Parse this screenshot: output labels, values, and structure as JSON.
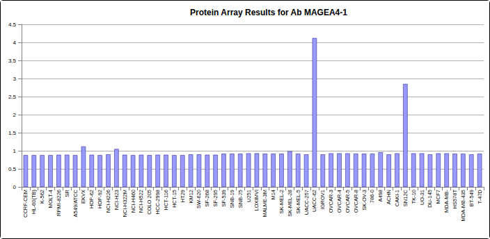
{
  "chart_data": {
    "type": "bar",
    "title": "Protein Array Results for Ab MAGEA4-1",
    "categories": [
      "CCRF-CEM",
      "HL-60(TB)",
      "K-562",
      "MOLT-4",
      "RPMI-8226",
      "SR",
      "A549/ATCC",
      "EKVX",
      "HOP-62",
      "HOP-92",
      "NCI-H226",
      "NCI-H23",
      "NCI-H322M",
      "NCI-H460",
      "NCI-H522",
      "COLO 205",
      "HCC-2998",
      "HCT-116",
      "HCT-15",
      "HT29",
      "KM12",
      "SW-620",
      "SF-268",
      "SF-295",
      "SF-539",
      "SNB-19",
      "SNB-75",
      "U251",
      "LOXIMVI",
      "MALME-3M",
      "M14",
      "SK-MEL-2",
      "SK-MEL-28",
      "SK-MEL-5",
      "UACC-257",
      "UACC-62",
      "IGROV1",
      "OVCAR-3",
      "OVCAR-4",
      "OVCAR-5",
      "OVCAR-8",
      "SK-OV-3",
      "786-0",
      "A498",
      "ACHN",
      "CAKI-1",
      "SN12C",
      "TK-10",
      "UO-31",
      "DU-145",
      "MCF7",
      "MDA-MB-",
      "HS578T",
      "MDA-MB-435",
      "BT-549",
      "T-47D"
    ],
    "values": [
      0.88,
      0.88,
      0.88,
      0.88,
      0.89,
      0.89,
      0.88,
      1.12,
      0.89,
      0.88,
      0.9,
      1.05,
      0.89,
      0.88,
      0.89,
      0.88,
      0.89,
      0.89,
      0.88,
      0.88,
      0.9,
      0.9,
      0.89,
      0.89,
      0.92,
      0.92,
      0.92,
      0.93,
      0.93,
      0.92,
      0.92,
      0.92,
      0.99,
      0.92,
      0.9,
      4.12,
      0.9,
      0.93,
      0.93,
      0.93,
      0.92,
      0.92,
      0.92,
      0.96,
      0.9,
      0.93,
      2.85,
      0.93,
      0.93,
      0.9,
      0.93,
      0.93,
      0.92,
      0.92,
      0.9,
      0.92
    ],
    "color": "#9999ff",
    "ylim": [
      0,
      4.5
    ],
    "yticks": [
      0,
      0.5,
      1,
      1.5,
      2,
      2.5,
      3,
      3.5,
      4,
      4.5
    ],
    "grid": true
  }
}
